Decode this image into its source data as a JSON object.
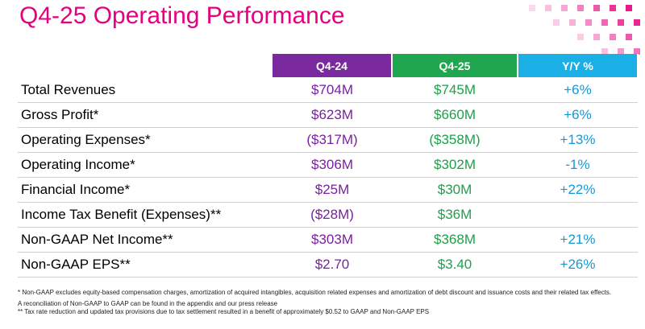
{
  "title": "Q4-25 Operating Performance",
  "colors": {
    "accent": "#e6007e",
    "q424": "#7a1fa2",
    "q425": "#1ea04a",
    "yy": "#1798d5",
    "q424_header_bg": "#7a2a9e",
    "q425_header_bg": "#1fa64f",
    "yy_header_bg": "#1ab0e6"
  },
  "table": {
    "headers": [
      "Q4-24",
      "Q4-25",
      "Y/Y %"
    ],
    "rows": [
      {
        "label": "Total Revenues",
        "q424": "$704M",
        "q425": "$745M",
        "yy": "+6%"
      },
      {
        "label": "Gross Profit*",
        "q424": "$623M",
        "q425": "$660M",
        "yy": "+6%"
      },
      {
        "label": "Operating Expenses*",
        "q424": "($317M)",
        "q425": "($358M)",
        "yy": "+13%"
      },
      {
        "label": "Operating Income*",
        "q424": "$306M",
        "q425": "$302M",
        "yy": "-1%"
      },
      {
        "label": "Financial Income*",
        "q424": "$25M",
        "q425": "$30M",
        "yy": "+22%"
      },
      {
        "label": "Income Tax Benefit (Expenses)**",
        "q424": "($28M)",
        "q425": "$36M",
        "yy": ""
      },
      {
        "label": "Non-GAAP Net Income**",
        "q424": "$303M",
        "q425": "$368M",
        "yy": "+21%"
      },
      {
        "label": "Non-GAAP EPS**",
        "q424": "$2.70",
        "q425": "$3.40",
        "yy": "+26%"
      }
    ]
  },
  "footnotes": {
    "note1": "* Non-GAAP excludes equity-based compensation charges, amortization of acquired intangibles, acquisition related expenses and amortization of debt discount and issuance costs and their related tax effects.",
    "note2": "A reconciliation of Non-GAAP to GAAP can be found in the appendix and our press release",
    "note3": "** Tax rate reduction and updated tax provisions due to tax settlement resulted in a benefit of approximately $0.52 to GAAP and Non-GAAP EPS"
  }
}
